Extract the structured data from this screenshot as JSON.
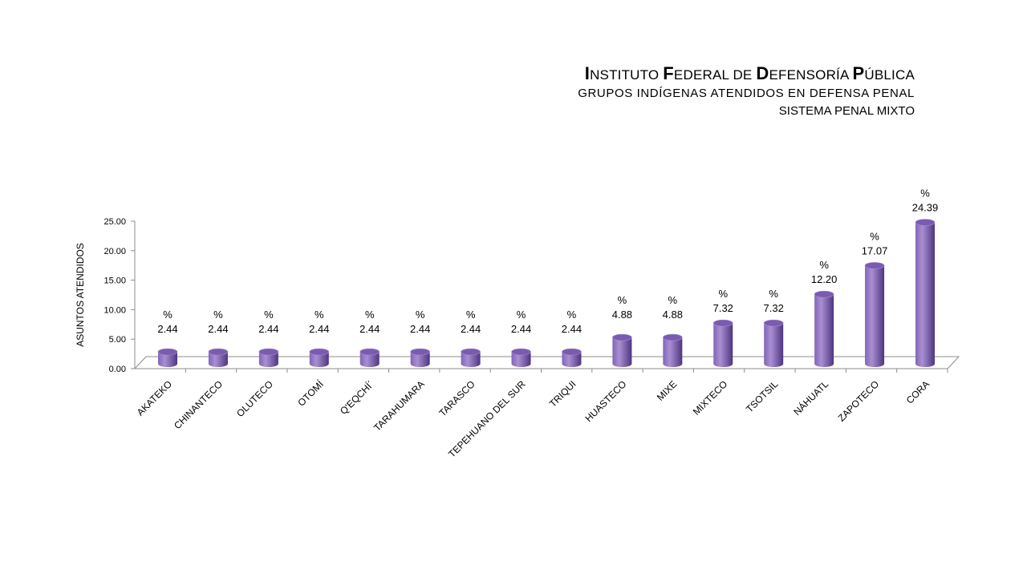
{
  "header": {
    "title_parts": [
      {
        "cap": "I",
        "rest": "NSTITUTO "
      },
      {
        "cap": "F",
        "rest": "EDERAL DE "
      },
      {
        "cap": "D",
        "rest": "EFENSORÍA "
      },
      {
        "cap": "P",
        "rest": "ÚBLICA"
      }
    ],
    "subtitle": "GRUPOS  INDÍGENAS  ATENDIDOS  EN  DEFENSA  PENAL",
    "subtitle2": "SISTEMA PENAL MIXTO"
  },
  "chart_data": {
    "type": "bar",
    "ylabel": "ASUNTOS ATENDIDOS",
    "xlabel": "",
    "ylim": [
      0,
      25
    ],
    "yticks": [
      "0.00",
      "5.00",
      "10.00",
      "15.00",
      "20.00",
      "25.00"
    ],
    "categories": [
      "AKATEKO",
      "CHINANTECO",
      "OLUTECO",
      "OTOMÍ",
      "Q'EQCHÍ´",
      "TARAHUMARA",
      "TARASCO",
      "TEPEHUANO DEL SUR",
      "TRIQUI",
      "HUASTECO",
      "MIXE",
      "MIXTECO",
      "TSOTSIL",
      "NÁHUATL",
      "ZAPOTECO",
      "CORA"
    ],
    "values": [
      2.44,
      2.44,
      2.44,
      2.44,
      2.44,
      2.44,
      2.44,
      2.44,
      2.44,
      4.88,
      4.88,
      7.32,
      7.32,
      12.2,
      17.07,
      24.39
    ],
    "labels": [
      "2.44",
      "2.44",
      "2.44",
      "2.44",
      "2.44",
      "2.44",
      "2.44",
      "2.44",
      "2.44",
      "4.88",
      "4.88",
      "7.32",
      "7.32",
      "12.20",
      "17.07",
      "24.39"
    ],
    "label_prefix": "%",
    "grid": false,
    "legend": "none",
    "colors": {
      "bar_light": "#a98fd1",
      "bar_mid": "#8364b8",
      "bar_dark": "#4f3580",
      "bar_top": "#7a5bb0",
      "axis": "#8c8c8c"
    }
  }
}
